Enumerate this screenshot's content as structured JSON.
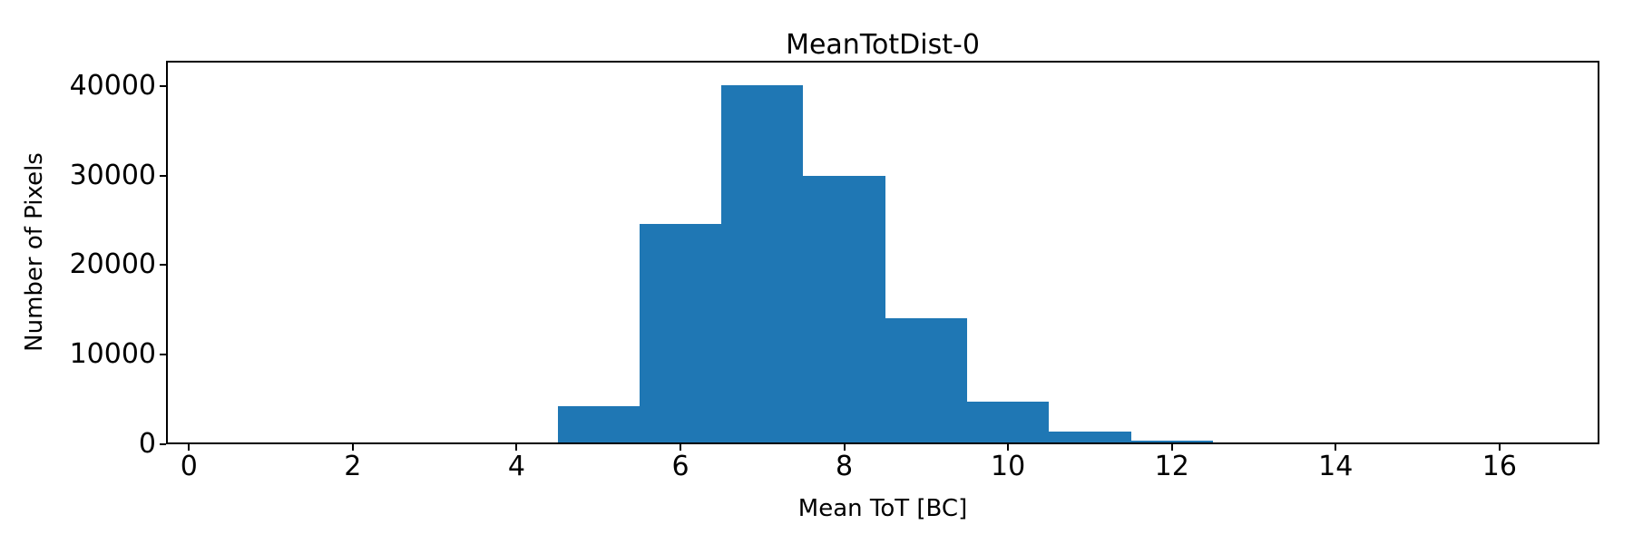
{
  "figure": {
    "title": "MeanTotDist-0",
    "xlabel": "Mean ToT [BC]",
    "ylabel": "Number of Pixels"
  },
  "chart_data": {
    "type": "bar",
    "subtype": "histogram",
    "title": "MeanTotDist-0",
    "xlabel": "Mean ToT [BC]",
    "ylabel": "Number of Pixels",
    "bar_color": "#1f77b4",
    "bin_edges": [
      3.5,
      4.5,
      5.5,
      6.5,
      7.5,
      8.5,
      9.5,
      10.5,
      11.5,
      12.5,
      13.5,
      14.5
    ],
    "counts": [
      250,
      4300,
      24600,
      40100,
      30000,
      14100,
      4750,
      1400,
      450,
      160,
      90
    ],
    "xticks": [
      0,
      2,
      4,
      6,
      8,
      10,
      12,
      14,
      16
    ],
    "yticks": [
      0,
      10000,
      20000,
      30000,
      40000
    ],
    "xlim": [
      -0.28,
      17.22
    ],
    "ylim": [
      0,
      42800
    ],
    "grid": false,
    "legend": null,
    "axis_color": "#000000",
    "background_color": "#ffffff"
  }
}
